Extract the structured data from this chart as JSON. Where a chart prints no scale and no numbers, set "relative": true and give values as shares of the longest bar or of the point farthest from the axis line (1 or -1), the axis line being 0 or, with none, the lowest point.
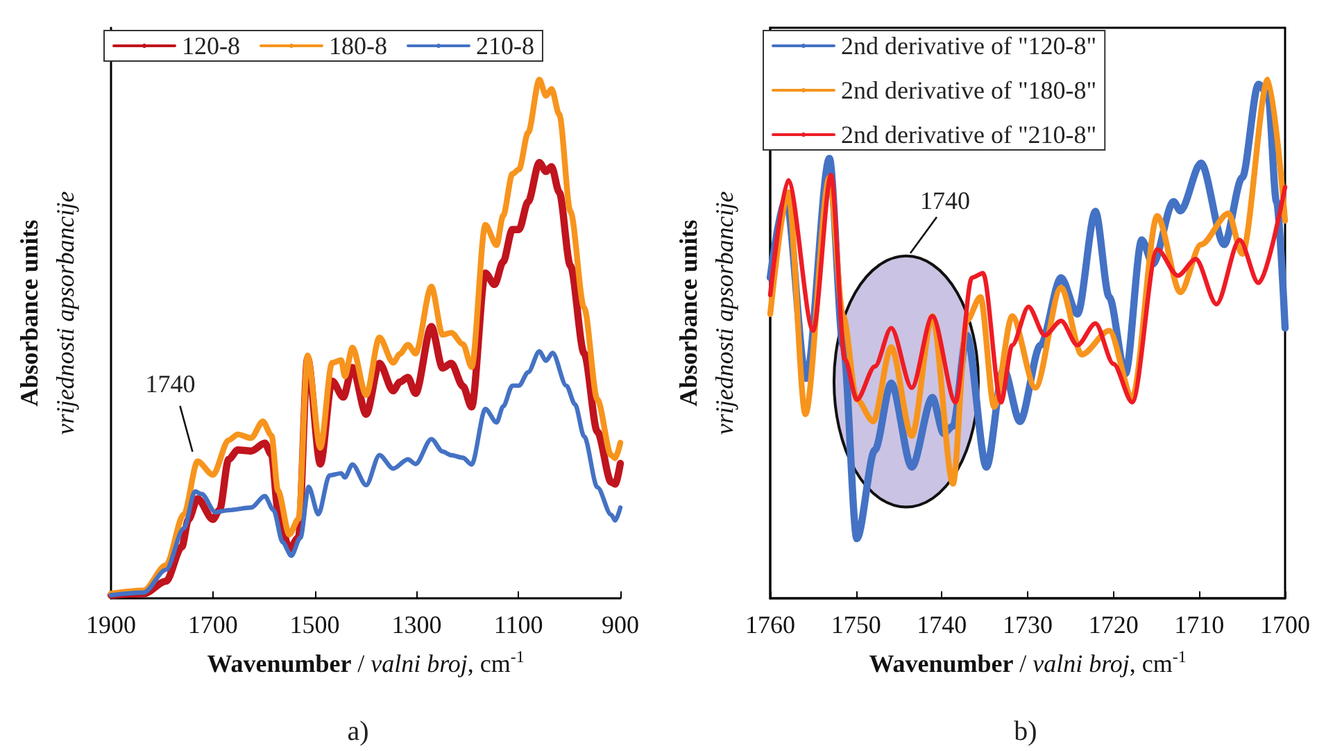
{
  "chart_data": [
    {
      "type": "line",
      "relative": true,
      "xlabel": "Wavenumber / valni broj, cm$^{-1}$",
      "ylabel": "Absorbance units\nvrijednosti apsorbancije",
      "xlim": [
        1900,
        900
      ],
      "xticks": [
        1900,
        1700,
        1500,
        1300,
        1100,
        900
      ],
      "legend": "top left",
      "grid": false,
      "marker": "none",
      "line_style": "solid",
      "annotations": [
        {
          "text": "1740",
          "x": 1740,
          "y": 0.264
        },
        "a)"
      ],
      "series": [
        {
          "name": "120-8",
          "color": "#c0141e",
          "x": [
            1900,
            1836,
            1792,
            1761,
            1748,
            1730,
            1700,
            1687,
            1669,
            1651,
            1625,
            1598,
            1585,
            1572,
            1550,
            1532,
            1514,
            1489,
            1466,
            1444,
            1426,
            1399,
            1373,
            1346,
            1333,
            1317,
            1302,
            1271,
            1249,
            1232,
            1209,
            1192,
            1165,
            1147,
            1130,
            1112,
            1099,
            1081,
            1059,
            1046,
            1035,
            1020,
            998,
            971,
            945,
            918,
            910,
            900
          ],
          "values": [
            0.006,
            0.009,
            0.033,
            0.099,
            0.152,
            0.192,
            0.152,
            0.17,
            0.268,
            0.286,
            0.284,
            0.299,
            0.277,
            0.17,
            0.095,
            0.117,
            0.463,
            0.259,
            0.419,
            0.388,
            0.445,
            0.355,
            0.453,
            0.4,
            0.417,
            0.426,
            0.395,
            0.524,
            0.444,
            0.453,
            0.409,
            0.369,
            0.627,
            0.605,
            0.649,
            0.711,
            0.711,
            0.765,
            0.84,
            0.823,
            0.832,
            0.783,
            0.641,
            0.472,
            0.321,
            0.224,
            0.22,
            0.26
          ]
        },
        {
          "name": "180-8",
          "color": "#f7941d",
          "x": [
            1900,
            1836,
            1792,
            1757,
            1730,
            1700,
            1669,
            1651,
            1625,
            1602,
            1585,
            1572,
            1550,
            1532,
            1514,
            1489,
            1466,
            1448,
            1441,
            1426,
            1399,
            1373,
            1346,
            1333,
            1317,
            1302,
            1271,
            1249,
            1232,
            1209,
            1192,
            1165,
            1143,
            1130,
            1112,
            1099,
            1081,
            1059,
            1046,
            1035,
            1020,
            998,
            971,
            945,
            918,
            910,
            900
          ],
          "values": [
            0.009,
            0.015,
            0.064,
            0.162,
            0.264,
            0.238,
            0.305,
            0.316,
            0.309,
            0.341,
            0.314,
            0.207,
            0.123,
            0.153,
            0.468,
            0.29,
            0.454,
            0.459,
            0.428,
            0.483,
            0.392,
            0.503,
            0.454,
            0.471,
            0.489,
            0.472,
            0.601,
            0.508,
            0.512,
            0.49,
            0.446,
            0.72,
            0.681,
            0.738,
            0.818,
            0.827,
            0.898,
            1.0,
            0.969,
            0.982,
            0.933,
            0.746,
            0.56,
            0.383,
            0.276,
            0.27,
            0.3
          ]
        },
        {
          "name": "210-8",
          "color": "#4472c4",
          "x": [
            1900,
            1836,
            1792,
            1757,
            1735,
            1722,
            1695,
            1669,
            1625,
            1598,
            1581,
            1563,
            1546,
            1528,
            1512,
            1493,
            1471,
            1448,
            1441,
            1426,
            1399,
            1373,
            1346,
            1317,
            1302,
            1271,
            1249,
            1232,
            1209,
            1192,
            1165,
            1143,
            1130,
            1112,
            1099,
            1081,
            1059,
            1046,
            1033,
            1006,
            989,
            971,
            945,
            918,
            910,
            900
          ],
          "values": [
            0.006,
            0.011,
            0.055,
            0.135,
            0.206,
            0.201,
            0.166,
            0.17,
            0.175,
            0.197,
            0.17,
            0.108,
            0.082,
            0.117,
            0.215,
            0.162,
            0.237,
            0.241,
            0.233,
            0.258,
            0.218,
            0.276,
            0.25,
            0.268,
            0.259,
            0.307,
            0.283,
            0.276,
            0.271,
            0.258,
            0.365,
            0.339,
            0.37,
            0.41,
            0.41,
            0.436,
            0.476,
            0.458,
            0.473,
            0.41,
            0.374,
            0.312,
            0.214,
            0.161,
            0.15,
            0.175
          ]
        }
      ]
    },
    {
      "type": "line",
      "relative": true,
      "xlabel": "Wavenumber / valni broj, cm$^{-1}$",
      "ylabel": "Absorbance units\nvrijednosti apsorbancije",
      "xlim": [
        1760,
        1700
      ],
      "xticks": [
        1760,
        1750,
        1740,
        1730,
        1720,
        1710,
        1700
      ],
      "legend": "top left",
      "grid": false,
      "marker": "none",
      "line_style": "solid",
      "annotations": [
        "1740",
        "b)"
      ],
      "series": [
        {
          "name": "2nd derivative of \"120-8\"",
          "color": "#4472c4",
          "x": [
            1760,
            1758.2,
            1755.8,
            1753.1,
            1751.5,
            1749.9,
            1747.8,
            1745.9,
            1743.5,
            1741.1,
            1739.8,
            1738.7,
            1737.1,
            1734.8,
            1732.8,
            1730.9,
            1728.5,
            1726.1,
            1724.2,
            1722.1,
            1720.5,
            1718.6,
            1716.7,
            1715.4,
            1713.0,
            1712.2,
            1709.8,
            1707.1,
            1705.0,
            1703.1,
            1702.0,
            1701.0,
            1700
          ],
          "values": [
            0.618,
            0.774,
            0.424,
            0.848,
            0.488,
            0.115,
            0.286,
            0.415,
            0.253,
            0.387,
            0.318,
            0.332,
            0.507,
            0.253,
            0.442,
            0.341,
            0.488,
            0.618,
            0.548,
            0.746,
            0.581,
            0.433,
            0.691,
            0.645,
            0.765,
            0.747,
            0.839,
            0.682,
            0.811,
            0.991,
            0.972,
            0.765,
            0.521
          ]
        },
        {
          "name": "2nd derivative of \"180-8\"",
          "color": "#f7941d",
          "x": [
            1760,
            1757.9,
            1755.9,
            1753.1,
            1751.5,
            1749.9,
            1748.0,
            1745.9,
            1743.5,
            1741.1,
            1738.7,
            1737.1,
            1735.5,
            1733.9,
            1731.8,
            1729.1,
            1726.1,
            1723.7,
            1720.5,
            1717.8,
            1714.9,
            1712.2,
            1709.8,
            1706.6,
            1705.0,
            1702.0,
            1700
          ],
          "values": [
            0.548,
            0.783,
            0.355,
            0.811,
            0.544,
            0.383,
            0.341,
            0.484,
            0.313,
            0.544,
            0.221,
            0.535,
            0.581,
            0.369,
            0.544,
            0.406,
            0.599,
            0.47,
            0.516,
            0.387,
            0.737,
            0.59,
            0.682,
            0.742,
            0.664,
            1.0,
            0.728
          ]
        },
        {
          "name": "2nd derivative of \"210-8\"",
          "color": "#ee1c25",
          "x": [
            1760,
            1757.9,
            1755.0,
            1752.9,
            1751.3,
            1749.9,
            1747.8,
            1745.9,
            1743.5,
            1741.1,
            1738.4,
            1736.5,
            1735.2,
            1733.1,
            1731.8,
            1729.9,
            1728.0,
            1726.1,
            1724.2,
            1722.1,
            1720.0,
            1717.8,
            1714.9,
            1712.5,
            1710.4,
            1708.0,
            1705.3,
            1703.1,
            1700
          ],
          "values": [
            0.585,
            0.806,
            0.516,
            0.816,
            0.461,
            0.383,
            0.447,
            0.521,
            0.406,
            0.544,
            0.378,
            0.618,
            0.627,
            0.378,
            0.488,
            0.562,
            0.507,
            0.535,
            0.488,
            0.53,
            0.452,
            0.378,
            0.673,
            0.622,
            0.654,
            0.567,
            0.691,
            0.608,
            0.793
          ]
        }
      ]
    }
  ]
}
